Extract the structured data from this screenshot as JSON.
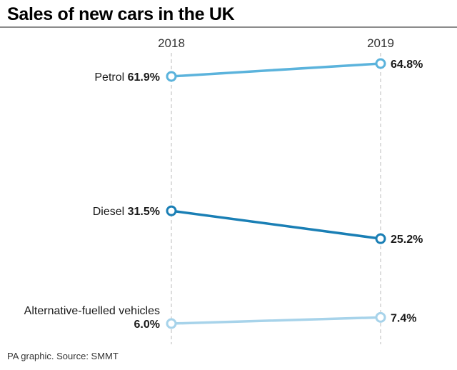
{
  "chart_data": {
    "type": "line",
    "title": "Sales of new cars in the UK",
    "categories": [
      "2018",
      "2019"
    ],
    "series": [
      {
        "name": "Petrol",
        "values": [
          61.9,
          64.8
        ],
        "labels": [
          "61.9%",
          "64.8%"
        ],
        "color": "#5bb3dc"
      },
      {
        "name": "Diesel",
        "values": [
          31.5,
          25.2
        ],
        "labels": [
          "31.5%",
          "25.2%"
        ],
        "color": "#1a7fb5"
      },
      {
        "name": "Alternative-fuelled vehicles",
        "values": [
          6.0,
          7.4
        ],
        "labels": [
          "6.0%",
          "7.4%"
        ],
        "color": "#a7d3ea"
      }
    ],
    "ylim": [
      6.0,
      64.8
    ],
    "unit": "%",
    "source": "PA graphic. Source: SMMT"
  }
}
